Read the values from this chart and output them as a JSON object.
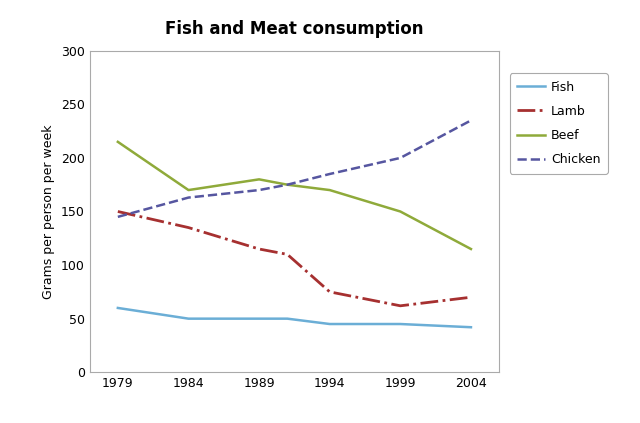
{
  "title": "Fish and Meat consumption",
  "ylabel": "Grams per person per week",
  "years": [
    1979,
    1984,
    1989,
    1991,
    1994,
    1999,
    2004
  ],
  "fish": [
    60,
    50,
    50,
    50,
    45,
    45,
    42
  ],
  "lamb": [
    150,
    135,
    115,
    110,
    75,
    62,
    70
  ],
  "beef": [
    215,
    170,
    180,
    175,
    170,
    150,
    115
  ],
  "chicken": [
    145,
    163,
    170,
    175,
    185,
    200,
    235
  ],
  "fish_color": "#6baed6",
  "lamb_color": "#a63030",
  "beef_color": "#8faa3a",
  "chicken_color": "#5656a0",
  "ylim": [
    0,
    300
  ],
  "yticks": [
    0,
    50,
    100,
    150,
    200,
    250,
    300
  ],
  "xticks": [
    1979,
    1984,
    1989,
    1994,
    1999,
    2004
  ],
  "title_fontsize": 12,
  "label_fontsize": 9,
  "tick_fontsize": 9,
  "legend_fontsize": 9
}
